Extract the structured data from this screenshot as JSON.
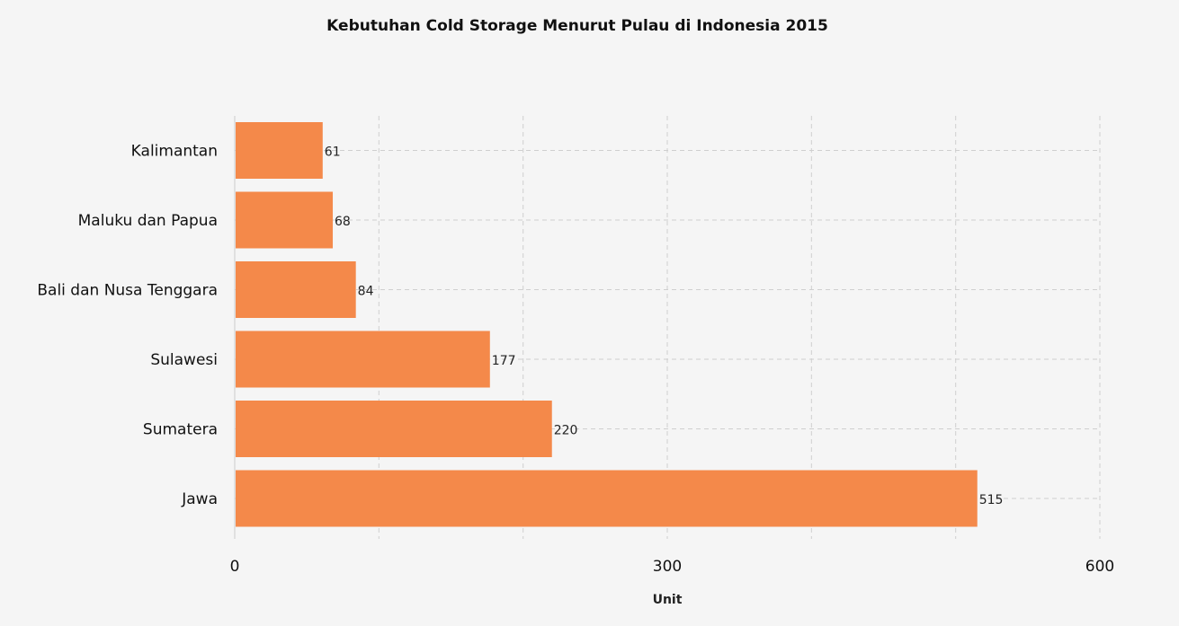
{
  "chart_data": {
    "type": "bar",
    "orientation": "horizontal",
    "title": "Kebutuhan Cold Storage Menurut Pulau di Indonesia 2015",
    "xlabel": "Unit",
    "ylabel": "",
    "categories": [
      "Kalimantan",
      "Maluku dan Papua",
      "Bali dan Nusa Tenggara",
      "Sulawesi",
      "Sumatera",
      "Jawa"
    ],
    "values": [
      61,
      68,
      84,
      177,
      220,
      515
    ],
    "xlim": [
      0,
      600
    ],
    "x_ticks": [
      0,
      300,
      600
    ],
    "x_tick_labels": [
      "0",
      "300",
      "600"
    ],
    "minor_gridlines": [
      100,
      200,
      400,
      500
    ],
    "grid": true,
    "legend": "none",
    "bar_color": "#f4894a",
    "background_color": "#f5f5f5"
  }
}
